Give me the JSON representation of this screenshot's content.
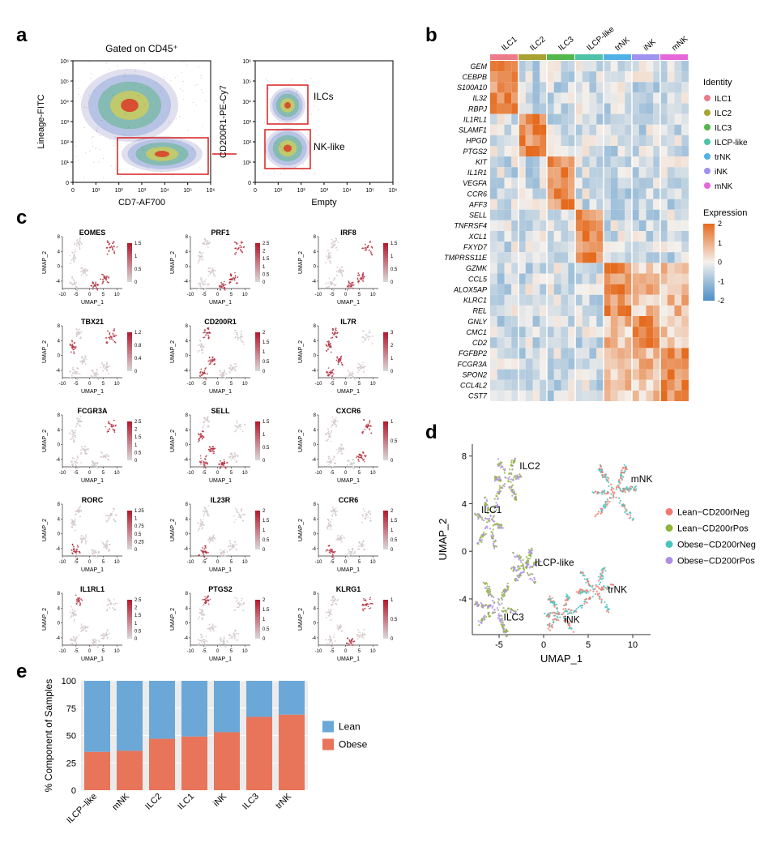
{
  "panels": {
    "a": "a",
    "b": "b",
    "c": "c",
    "d": "d",
    "e": "e"
  },
  "a": {
    "title": "Gated on CD45⁺",
    "xlab": "CD7-AF700",
    "ylab": "Lineage-FITC",
    "xticks": [
      "0",
      "10¹",
      "10²",
      "10³",
      "10⁴",
      "10⁵",
      "10⁶"
    ],
    "yticks": [
      "0",
      "10¹",
      "10²",
      "10³",
      "10⁴",
      "10⁵",
      "10⁶"
    ],
    "right_xlab": "Empty",
    "right_ylab": "CD200R1-PE-Cy7",
    "right_xticks": [
      "0",
      "10¹",
      "10²",
      "10³",
      "10⁴",
      "10⁵",
      "10⁶"
    ],
    "right_yticks": [
      "0",
      "10¹",
      "10²",
      "10³",
      "10⁴",
      "10⁵",
      "10⁶"
    ],
    "gate_labels": {
      "ilcs": "ILCs",
      "nk": "NK-like"
    }
  },
  "b": {
    "genes": [
      "GEM",
      "CEBPB",
      "S100A10",
      "IL32",
      "RBPJ",
      "IL1RL1",
      "SLAMF1",
      "HPGD",
      "PTGS2",
      "KIT",
      "IL1R1",
      "VEGFA",
      "CCR6",
      "AFF3",
      "SELL",
      "TNFRSF4",
      "XCL1",
      "FXYD7",
      "TMPRSS11E",
      "GZMK",
      "CCL5",
      "ALOX5AP",
      "KLRC1",
      "REL",
      "GNLY",
      "CMC1",
      "CD2",
      "FGFBP2",
      "FCGR3A",
      "SPON2",
      "CCL4L2",
      "CST7"
    ],
    "clusters": [
      "ILC1",
      "ILC2",
      "ILC3",
      "ILCP-like",
      "trNK",
      "iNK",
      "mNK"
    ],
    "cluster_colors": [
      "#ec7b8b",
      "#a8a232",
      "#53b74c",
      "#4fc2a8",
      "#4fb2e6",
      "#9f92f0",
      "#e667d9"
    ],
    "legend_identity_title": "Identity",
    "legend_expression_title": "Expression",
    "expression_ticks": [
      "2",
      "1",
      "0",
      "-1",
      "-2"
    ],
    "gene_cluster_assignment": [
      0,
      0,
      0,
      0,
      0,
      1,
      1,
      1,
      1,
      2,
      2,
      2,
      2,
      2,
      3,
      3,
      3,
      3,
      3,
      4,
      4,
      4,
      4,
      4,
      5,
      5,
      5,
      6,
      6,
      6,
      6,
      6
    ],
    "colors": {
      "high": "#e56b1f",
      "mid": "#f4f0ec",
      "low": "#4a8fc7"
    }
  },
  "c": {
    "genes": [
      "EOMES",
      "PRF1",
      "IRF8",
      "TBX21",
      "CD200R1",
      "IL7R",
      "FCGR3A",
      "SELL",
      "CXCR6",
      "RORC",
      "IL23R",
      "CCR6",
      "IL1RL1",
      "PTGS2",
      "KLRG1"
    ],
    "xlab": "UMAP_1",
    "ylab": "UMAP_2",
    "xlim": [
      -10,
      12
    ],
    "ylim": [
      -6,
      8
    ],
    "xticks": [
      -10,
      -5,
      0,
      5,
      10
    ],
    "yticks": [
      -4,
      0,
      4,
      8
    ],
    "scales": {
      "EOMES": [
        0,
        0.5,
        1,
        1.5
      ],
      "PRF1": [
        0,
        0.5,
        1,
        1.5,
        2,
        2.5
      ],
      "IRF8": [
        0,
        0.5,
        1,
        1.5
      ],
      "TBX21": [
        0,
        0.4,
        0.8,
        1.2
      ],
      "CD200R1": [
        0,
        0.5,
        1,
        1.5,
        2
      ],
      "IL7R": [
        0,
        1,
        2,
        3
      ],
      "FCGR3A": [
        0,
        0.5,
        1,
        1.5,
        2,
        2.5
      ],
      "SELL": [
        0,
        0.5,
        1,
        1.5
      ],
      "CXCR6": [
        0,
        0.5,
        1
      ],
      "RORC": [
        0,
        0.25,
        0.5,
        0.75,
        1,
        1.25
      ],
      "IL23R": [
        0,
        0.5,
        1,
        1.5,
        2
      ],
      "CCR6": [
        0,
        0.5,
        1,
        1.5,
        2
      ],
      "IL1RL1": [
        0,
        0.5,
        1,
        1.5,
        2,
        2.5
      ],
      "PTGS2": [
        0,
        0.5,
        1,
        1.5,
        2
      ],
      "KLRG1": [
        0,
        0.5,
        1
      ]
    },
    "expr_clusters_high": {
      "EOMES": [
        "mNK",
        "iNK",
        "trNK"
      ],
      "PRF1": [
        "mNK",
        "iNK",
        "trNK"
      ],
      "IRF8": [
        "mNK",
        "iNK",
        "trNK"
      ],
      "TBX21": [
        "mNK",
        "ILC1"
      ],
      "CD200R1": [
        "ILC2",
        "ILC3",
        "ILCP"
      ],
      "IL7R": [
        "ILC1",
        "ILC2",
        "ILC3",
        "ILCP"
      ],
      "FCGR3A": [
        "mNK"
      ],
      "SELL": [
        "ILC3",
        "ILCP",
        "ILC1",
        "iNK"
      ],
      "CXCR6": [
        "mNK",
        "trNK"
      ],
      "RORC": [
        "ILC3"
      ],
      "IL23R": [
        "ILC3"
      ],
      "CCR6": [
        "ILC3"
      ],
      "IL1RL1": [
        "ILC2"
      ],
      "PTGS2": [
        "ILC2"
      ],
      "KLRG1": [
        "mNK",
        "iNK"
      ]
    },
    "colors": {
      "low": "#d9d9d9",
      "high": "#b2182b"
    }
  },
  "d": {
    "xlab": "UMAP_1",
    "ylab": "UMAP_2",
    "xlim": [
      -8,
      12
    ],
    "ylim": [
      -7,
      9
    ],
    "xticks": [
      -5,
      0,
      5,
      10
    ],
    "yticks": [
      -4,
      0,
      4,
      8
    ],
    "cluster_labels": {
      "ILC1": "ILC1",
      "ILC2": "ILC2",
      "ILC3": "ILC3",
      "ILCP": "ILCP-like",
      "trNK": "trNK",
      "iNK": "iNK",
      "mNK": "mNK"
    },
    "cluster_centers": {
      "ILC1": [
        -6.5,
        2.5
      ],
      "ILC2": [
        -4,
        6.3
      ],
      "ILC3": [
        -5,
        -5.2
      ],
      "ILCP": [
        -2.5,
        -1.5
      ],
      "iNK": [
        2,
        -5.5
      ],
      "trNK": [
        6,
        -3.5
      ],
      "mNK": [
        8,
        5
      ]
    },
    "groups": [
      "Lean−CD200rNeg",
      "Lean−CD200rPos",
      "Obese−CD200rNeg",
      "Obese−CD200rPos"
    ],
    "group_colors": [
      "#ee7a6f",
      "#8fb63a",
      "#4cc3bd",
      "#b08ee6"
    ]
  },
  "e": {
    "ylab": "% Component of Samples",
    "yticks": [
      0,
      25,
      50,
      75,
      100
    ],
    "categories": [
      "ILCP−like",
      "mNK",
      "ILC2",
      "ILC1",
      "iNK",
      "ILC3",
      "trNK"
    ],
    "obese_pct": [
      35,
      36,
      47,
      49,
      53,
      67,
      69
    ],
    "legend": [
      "Lean",
      "Obese"
    ],
    "colors": {
      "Lean": "#6ba8d8",
      "Obese": "#e8745a"
    },
    "bar_width": 0.8,
    "background": "#ebebeb",
    "grid": "#ffffff"
  }
}
